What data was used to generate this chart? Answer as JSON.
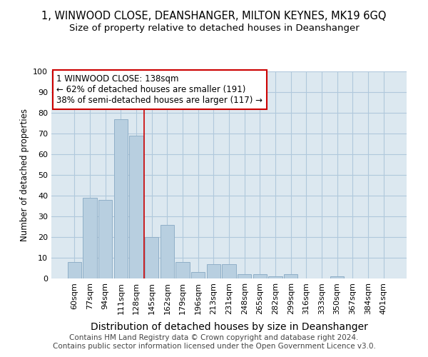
{
  "title": "1, WINWOOD CLOSE, DEANSHANGER, MILTON KEYNES, MK19 6GQ",
  "subtitle": "Size of property relative to detached houses in Deanshanger",
  "xlabel": "Distribution of detached houses by size in Deanshanger",
  "ylabel": "Number of detached properties",
  "footer_line1": "Contains HM Land Registry data © Crown copyright and database right 2024.",
  "footer_line2": "Contains public sector information licensed under the Open Government Licence v3.0.",
  "categories": [
    "60sqm",
    "77sqm",
    "94sqm",
    "111sqm",
    "128sqm",
    "145sqm",
    "162sqm",
    "179sqm",
    "196sqm",
    "213sqm",
    "231sqm",
    "248sqm",
    "265sqm",
    "282sqm",
    "299sqm",
    "316sqm",
    "333sqm",
    "350sqm",
    "367sqm",
    "384sqm",
    "401sqm"
  ],
  "values": [
    8,
    39,
    38,
    77,
    69,
    20,
    26,
    8,
    3,
    7,
    7,
    2,
    2,
    1,
    2,
    0,
    0,
    1,
    0,
    0,
    0
  ],
  "bar_color": "#b8cfe0",
  "bar_edge_color": "#90afc8",
  "vline_x": 4.5,
  "vline_color": "#cc0000",
  "annotation_text": "1 WINWOOD CLOSE: 138sqm\n← 62% of detached houses are smaller (191)\n38% of semi-detached houses are larger (117) →",
  "annotation_box_color": "#ffffff",
  "annotation_box_edge": "#cc0000",
  "ylim": [
    0,
    100
  ],
  "bg_color": "#ffffff",
  "plot_bg_color": "#dce8f0",
  "grid_color": "#b0c8dc",
  "title_fontsize": 10.5,
  "subtitle_fontsize": 9.5,
  "xlabel_fontsize": 10,
  "ylabel_fontsize": 8.5,
  "tick_fontsize": 8,
  "footer_fontsize": 7.5
}
